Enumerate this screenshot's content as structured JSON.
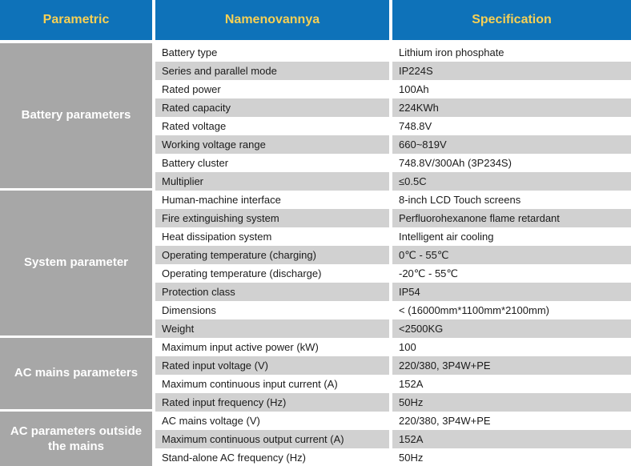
{
  "table": {
    "colors": {
      "header_bg": "#0e72b9",
      "header_text": "#f6d055",
      "group_bg": "#a7a7a7",
      "stripe_bg": "#d1d1d1",
      "row_text": "#1b1b1b"
    },
    "headers": [
      {
        "label": "Parametric"
      },
      {
        "label": "Namenovannya"
      },
      {
        "label": "Specification"
      }
    ],
    "sections": [
      {
        "group": "Battery parameters",
        "rows": [
          {
            "name": "Battery type",
            "spec": "Lithium iron phosphate"
          },
          {
            "name": "Series and parallel mode",
            "spec": "IP224S"
          },
          {
            "name": "Rated power",
            "spec": "100Ah"
          },
          {
            "name": "Rated capacity",
            "spec": "224KWh"
          },
          {
            "name": "Rated voltage",
            "spec": "748.8V"
          },
          {
            "name": "Working voltage range",
            "spec": "660~819V"
          },
          {
            "name": "Battery cluster",
            "spec": "748.8V/300Ah (3P234S)"
          },
          {
            "name": "Multiplier",
            "spec": "≤0.5C"
          }
        ]
      },
      {
        "group": "System parameter",
        "rows": [
          {
            "name": "Human-machine interface",
            "spec": "8-inch LCD Touch screens"
          },
          {
            "name": "Fire extinguishing system",
            "spec": "Perfluorohexanone flame retardant"
          },
          {
            "name": "Heat dissipation system",
            "spec": "Intelligent air cooling"
          },
          {
            "name": "Operating temperature (charging)",
            "spec": "0℃ - 55℃"
          },
          {
            "name": "Operating temperature (discharge)",
            "spec": "-20℃ - 55℃"
          },
          {
            "name": "Protection class",
            "spec": "IP54"
          },
          {
            "name": "Dimensions",
            "spec": "< (16000mm*1100mm*2100mm)"
          },
          {
            "name": "Weight",
            "spec": "<2500KG"
          }
        ]
      },
      {
        "group": "AC mains parameters",
        "rows": [
          {
            "name": "Maximum input active power (kW)",
            "spec": "100"
          },
          {
            "name": "Rated input voltage (V)",
            "spec": "220/380, 3P4W+PE"
          },
          {
            "name": "Maximum continuous input current (A)",
            "spec": "152A"
          },
          {
            "name": "Rated input frequency (Hz)",
            "spec": "50Hz"
          }
        ]
      },
      {
        "group": "AC parameters outside the mains",
        "rows": [
          {
            "name": "AC mains voltage (V)",
            "spec": "220/380, 3P4W+PE"
          },
          {
            "name": "Maximum continuous output current (A)",
            "spec": "152A"
          },
          {
            "name": "Stand-alone AC frequency (Hz)",
            "spec": "50Hz"
          }
        ]
      }
    ]
  }
}
